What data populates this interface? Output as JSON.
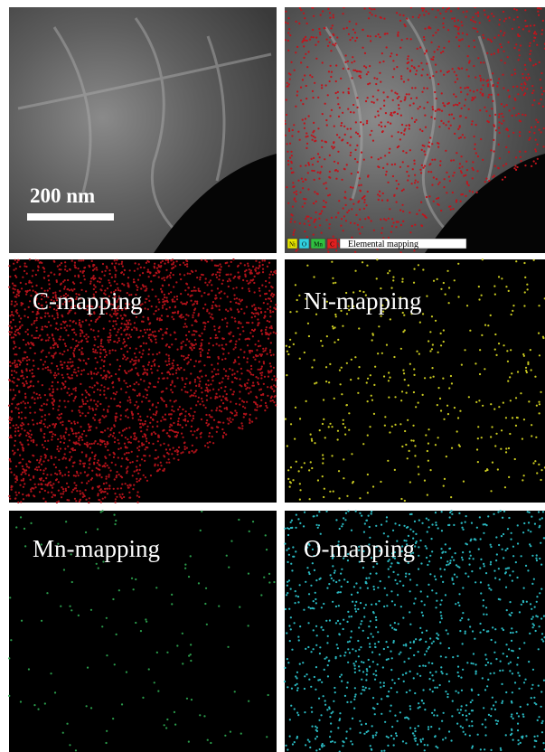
{
  "scale_bar": "200 nm",
  "legend": {
    "items": [
      "Ni",
      "O",
      "Mn",
      "C"
    ],
    "title": "Elemental mapping"
  },
  "maps": [
    {
      "label": "C-mapping"
    },
    {
      "label": "Ni-mapping"
    },
    {
      "label": "Mn-mapping"
    },
    {
      "label": "O-mapping"
    }
  ]
}
